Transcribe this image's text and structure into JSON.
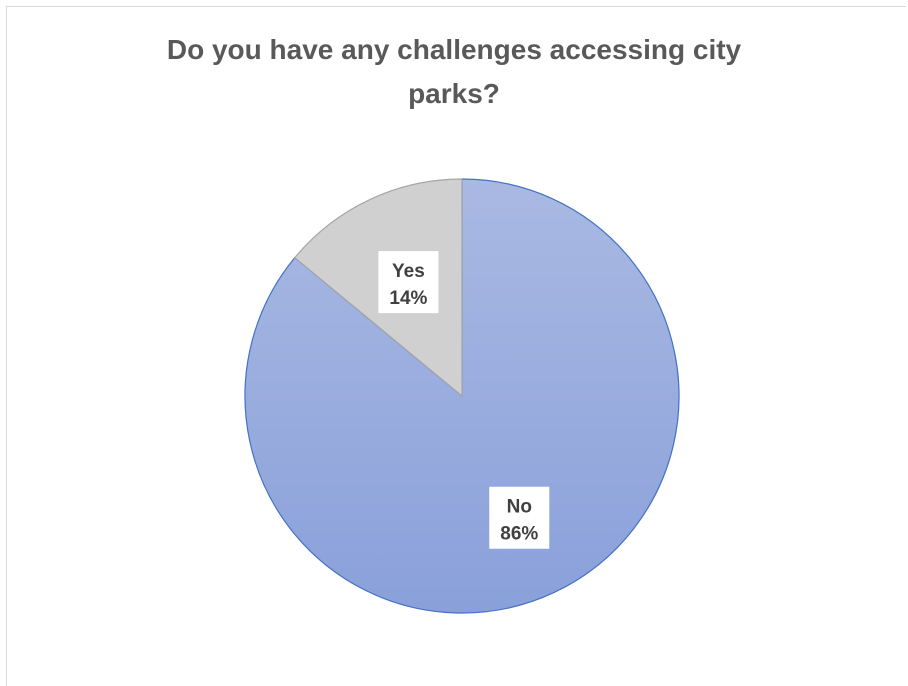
{
  "chart_data": {
    "type": "pie",
    "title_lines": [
      "Do you have any challenges accessing city",
      "parks?"
    ],
    "slices": [
      {
        "label": "No",
        "value": 86,
        "value_label": "86%",
        "color": "#8fa5d9"
      },
      {
        "label": "Yes",
        "value": 14,
        "value_label": "14%",
        "color": "#d0d0d0"
      }
    ]
  }
}
